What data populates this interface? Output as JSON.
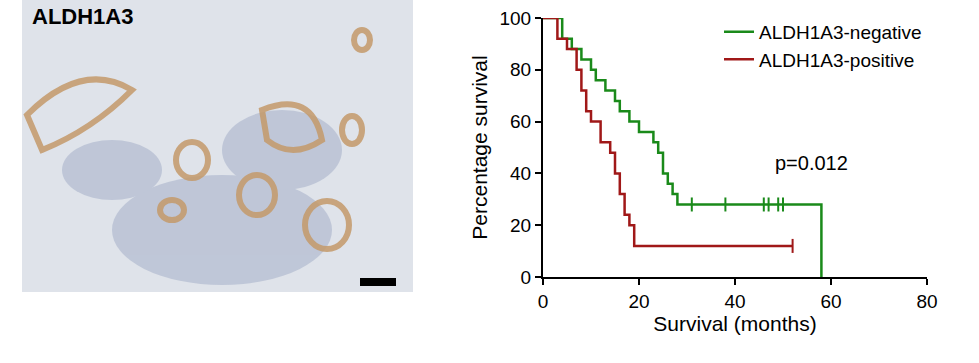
{
  "image_panel": {
    "label": "ALDH1A3"
  },
  "chart_data": {
    "type": "step",
    "x_label": "Survival (months)",
    "y_label": "Percentage survival",
    "xlim": [
      0,
      80
    ],
    "xticks": [
      0,
      20,
      40,
      60,
      80
    ],
    "ylim": [
      0,
      100
    ],
    "yticks": [
      0,
      20,
      40,
      60,
      80,
      100
    ],
    "grid": false,
    "legend": "top right",
    "annotations": [
      {
        "text": "p=0.012",
        "x": 56,
        "y": 44
      }
    ],
    "series": [
      {
        "name": "ALDH1A3-negative",
        "color": "#1a8a1a",
        "marker": "tick",
        "x": [
          0,
          4,
          6,
          8,
          10,
          11,
          13,
          15,
          16,
          18,
          20,
          23,
          24,
          25,
          26,
          27,
          28,
          58
        ],
        "values": [
          100,
          92,
          88,
          84,
          80,
          76,
          72,
          68,
          64,
          60,
          56,
          52,
          48,
          40,
          36,
          32,
          28,
          0
        ],
        "censored": {
          "x": [
            31,
            38,
            46,
            47,
            49,
            50
          ],
          "values": [
            28,
            28,
            28,
            28,
            28,
            28
          ]
        }
      },
      {
        "name": "ALDH1A3-positive",
        "color": "#a01818",
        "marker": "tick",
        "x": [
          0,
          3,
          5,
          7,
          8,
          9,
          10,
          12,
          14,
          15,
          16,
          17,
          18,
          19,
          52
        ],
        "values": [
          100,
          92,
          88,
          80,
          72,
          64,
          60,
          52,
          48,
          40,
          32,
          24,
          20,
          12,
          12
        ],
        "censored": {
          "x": [
            52
          ],
          "values": [
            12
          ]
        }
      }
    ]
  }
}
